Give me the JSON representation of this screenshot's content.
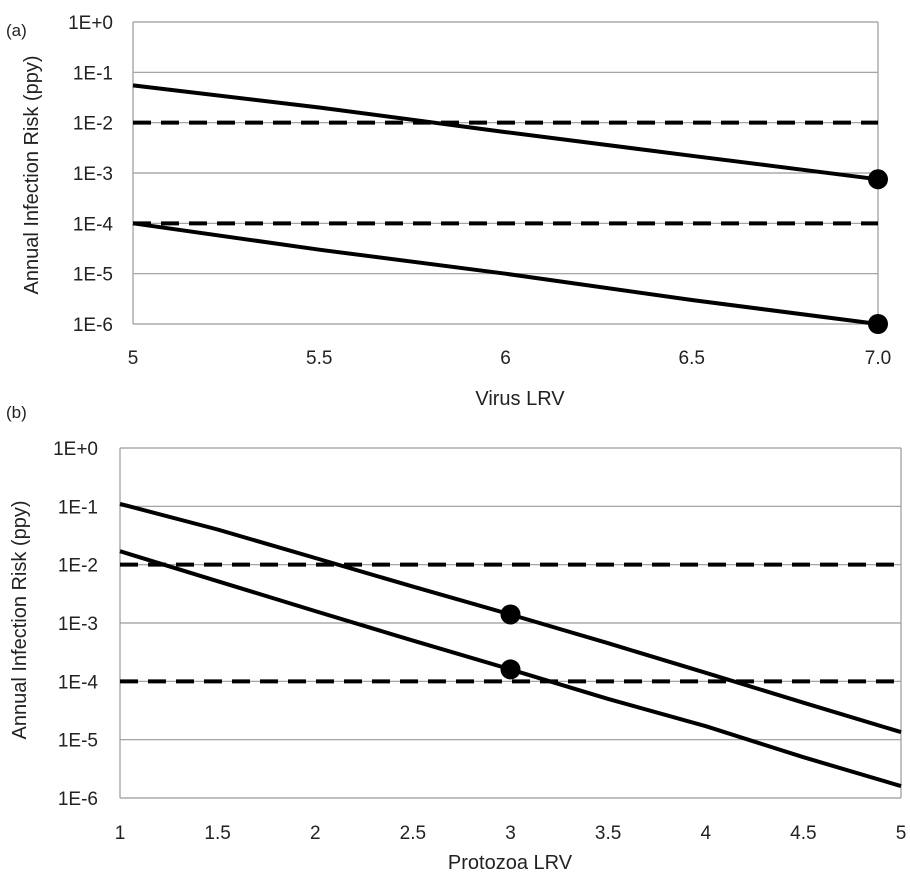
{
  "chart_data": [
    {
      "type": "line",
      "panel_label": "(a)",
      "xlabel": "Virus LRV",
      "ylabel": "Annual Infection Risk (ppy)",
      "xlim": [
        5,
        7
      ],
      "x_ticks": [
        "5",
        "5.5",
        "6",
        "6.5",
        "7.0"
      ],
      "y_scale": "log",
      "ylim": [
        1e-06,
        1
      ],
      "y_ticks": [
        "1E-6",
        "1E-5",
        "1E-4",
        "1E-3",
        "1E-2",
        "1E-1",
        "1E+0"
      ],
      "grid": true,
      "series": [
        {
          "style": "solid",
          "x": [
            5,
            5.5,
            6,
            6.5,
            7
          ],
          "y": [
            0.055,
            0.02,
            0.0065,
            0.0022,
            0.00075
          ]
        },
        {
          "style": "solid",
          "x": [
            5,
            5.5,
            6,
            6.5,
            7
          ],
          "y": [
            0.0001,
            3e-05,
            1e-05,
            3e-06,
            1e-06
          ]
        }
      ],
      "reference_lines": [
        {
          "style": "dashed",
          "y": 0.01
        },
        {
          "style": "dashed",
          "y": 0.0001
        }
      ],
      "markers": [
        {
          "x": 7,
          "y": 0.00075
        },
        {
          "x": 7,
          "y": 1e-06
        }
      ]
    },
    {
      "type": "line",
      "panel_label": "(b)",
      "xlabel": "Protozoa LRV",
      "ylabel": "Annual Infection Risk (ppy)",
      "xlim": [
        1,
        5
      ],
      "x_ticks": [
        "1",
        "1.5",
        "2",
        "2.5",
        "3",
        "3.5",
        "4",
        "4.5",
        "5"
      ],
      "y_scale": "log",
      "ylim": [
        1e-06,
        1
      ],
      "y_ticks": [
        "1E-6",
        "1E-5",
        "1E-4",
        "1E-3",
        "1E-2",
        "1E-1",
        "1E+0"
      ],
      "grid": true,
      "series": [
        {
          "style": "solid",
          "x": [
            1,
            1.5,
            2,
            2.5,
            3,
            3.5,
            4,
            4.5,
            5
          ],
          "y": [
            0.11,
            0.04,
            0.013,
            0.0042,
            0.0014,
            0.00045,
            0.00014,
            4.3e-05,
            1.35e-05
          ]
        },
        {
          "style": "solid",
          "x": [
            1,
            1.5,
            2,
            2.5,
            3,
            3.5,
            4,
            4.5,
            5
          ],
          "y": [
            0.017,
            0.0052,
            0.0016,
            0.0005,
            0.00016,
            5e-05,
            1.7e-05,
            5e-06,
            1.6e-06
          ]
        }
      ],
      "reference_lines": [
        {
          "style": "dashed",
          "y": 0.01
        },
        {
          "style": "dashed",
          "y": 0.0001
        }
      ],
      "markers": [
        {
          "x": 3,
          "y": 0.0014
        },
        {
          "x": 3,
          "y": 0.00016
        }
      ]
    }
  ]
}
